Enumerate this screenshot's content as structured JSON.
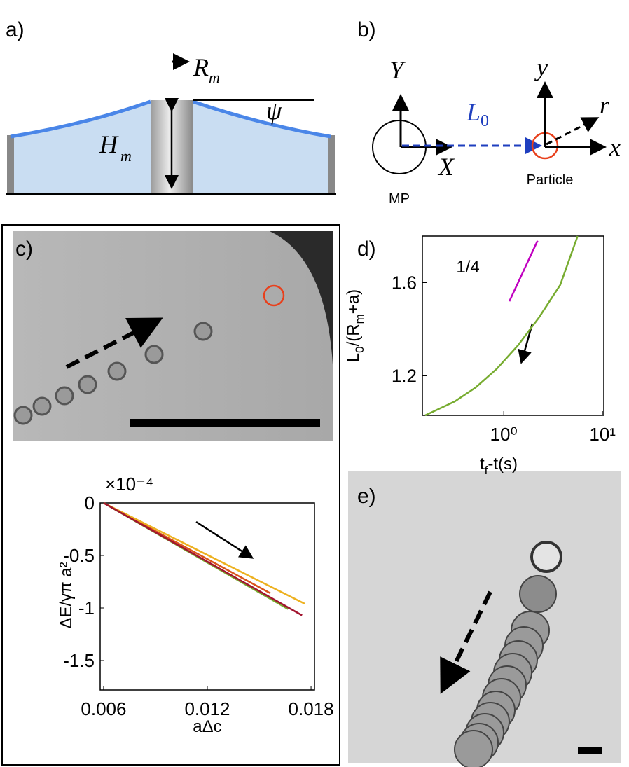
{
  "panels": {
    "a": {
      "label": "a)",
      "radius": {
        "main": "R",
        "sub": "m"
      },
      "height": {
        "main": "H",
        "sub": "m"
      },
      "angle": "ψ"
    },
    "b": {
      "label": "b)",
      "big_y": "Y",
      "big_x": "X",
      "distance": {
        "main": "L",
        "sub": "0"
      },
      "small_y": "y",
      "small_x": "x",
      "radial": "r",
      "mp": "MP",
      "particle": "Particle"
    },
    "c": {
      "label": "c)"
    },
    "d": {
      "label": "d)"
    },
    "e": {
      "label": "e)"
    }
  },
  "chart_data": [
    {
      "type": "line",
      "log_x": true,
      "xlabel": [
        {
          "text": "t"
        },
        {
          "text": "f",
          "sub": true
        },
        {
          "text": "-t(s)"
        }
      ],
      "ylabel": [
        {
          "text": "L"
        },
        {
          "text": "0",
          "sub": true
        },
        {
          "text": "/(R"
        },
        {
          "text": "m",
          "sub": true
        },
        {
          "text": "+a)"
        }
      ],
      "xlim": [
        0.15,
        10.3
      ],
      "ylim": [
        1.03,
        1.8
      ],
      "xticks": [
        {
          "value": 1,
          "label": "10⁰"
        },
        {
          "value": 10,
          "label": "10¹"
        }
      ],
      "yticks": [
        1.2,
        1.6
      ],
      "annotation": "1/4",
      "series": [
        {
          "color": "#77ac30",
          "x": [
            0.16,
            0.32,
            0.52,
            0.85,
            1.39,
            2.27,
            3.73,
            5.6
          ],
          "values": [
            1.03,
            1.09,
            1.15,
            1.23,
            1.33,
            1.45,
            1.59,
            1.8
          ]
        },
        {
          "color": "#c000c0",
          "x": [
            1.14,
            2.2
          ],
          "values": [
            1.52,
            1.78
          ]
        }
      ]
    },
    {
      "type": "line",
      "log_x": false,
      "xlabel": [
        {
          "text": "aΔc"
        }
      ],
      "ylabel": [
        {
          "text": "ΔE/γπ a²"
        }
      ],
      "multiplier": "×10⁻⁴",
      "xlim": [
        0.0058,
        0.0182
      ],
      "ylim": [
        -1.78,
        0
      ],
      "xticks": [
        0.006,
        0.012,
        0.018
      ],
      "yticks": [
        0,
        -0.5,
        -1,
        -1.5
      ],
      "series": [
        {
          "color": "#d95319",
          "x": [
            0.006,
            0.01565
          ],
          "values": [
            0,
            -0.86
          ]
        },
        {
          "color": "#77ac30",
          "x": [
            0.006,
            0.01667
          ],
          "values": [
            0,
            -1.01
          ]
        },
        {
          "color": "#edb120",
          "x": [
            0.006,
            0.01764
          ],
          "values": [
            0,
            -0.96
          ]
        },
        {
          "color": "#a2142f",
          "x": [
            0.006,
            0.01748
          ],
          "values": [
            0,
            -1.07
          ]
        }
      ]
    }
  ]
}
